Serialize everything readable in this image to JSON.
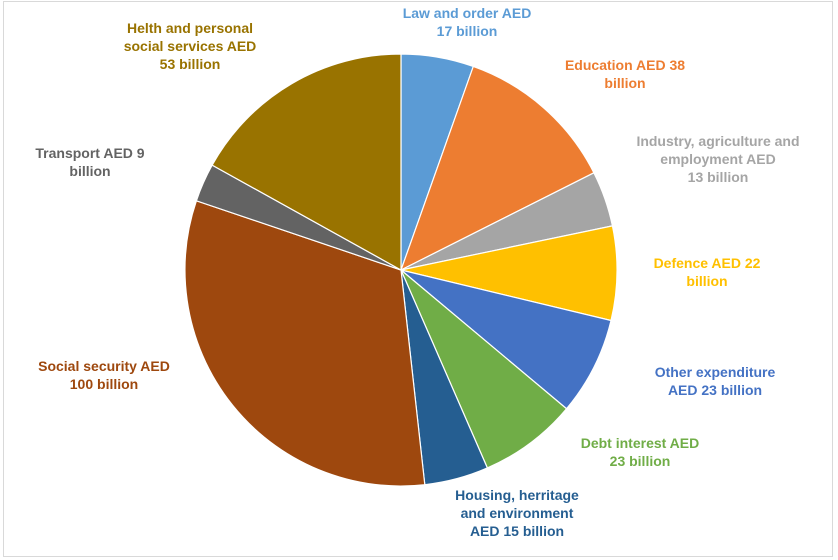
{
  "chart_data": {
    "type": "pie",
    "title": "",
    "start_angle_deg": 0,
    "direction": "clockwise",
    "slices": [
      {
        "key": "law",
        "label_lines": [
          "Law and order AED",
          "17 billion"
        ],
        "value": 17,
        "color": "#5b9bd5",
        "label_color": "#5b9bd5"
      },
      {
        "key": "education",
        "label_lines": [
          "Education AED 38",
          "billion"
        ],
        "value": 38,
        "color": "#ed7d31",
        "label_color": "#ed7d31"
      },
      {
        "key": "industry",
        "label_lines": [
          "Industry, agriculture and",
          "employment AED",
          "13 billion"
        ],
        "value": 13,
        "color": "#a5a5a5",
        "label_color": "#a5a5a5"
      },
      {
        "key": "defence",
        "label_lines": [
          "Defence AED 22",
          "billion"
        ],
        "value": 22,
        "color": "#ffc000",
        "label_color": "#ffc000"
      },
      {
        "key": "other",
        "label_lines": [
          "Other expenditure",
          "AED 23 billion"
        ],
        "value": 23,
        "color": "#4472c4",
        "label_color": "#4472c4"
      },
      {
        "key": "debt",
        "label_lines": [
          "Debt interest AED",
          "23 billion"
        ],
        "value": 23,
        "color": "#70ad47",
        "label_color": "#70ad47"
      },
      {
        "key": "housing",
        "label_lines": [
          "Housing, herritage",
          "and environment",
          "AED 15 billion"
        ],
        "value": 15,
        "color": "#255e91",
        "label_color": "#255e91"
      },
      {
        "key": "social",
        "label_lines": [
          "Social security AED",
          "100 billion"
        ],
        "value": 100,
        "color": "#9e480e",
        "label_color": "#9e480e"
      },
      {
        "key": "transport",
        "label_lines": [
          "Transport AED 9",
          "billion"
        ],
        "value": 9,
        "color": "#636363",
        "label_color": "#636363"
      },
      {
        "key": "health",
        "label_lines": [
          "Helth and personal",
          "social services AED",
          "53 billion"
        ],
        "value": 53,
        "color": "#997300",
        "label_color": "#997300"
      }
    ]
  }
}
